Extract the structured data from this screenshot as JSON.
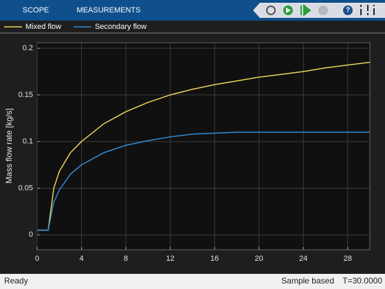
{
  "toolbar": {
    "tabs": [
      "SCOPE",
      "MEASUREMENTS"
    ]
  },
  "status": {
    "left": "Ready",
    "mode": "Sample based",
    "time": "T=30.0000"
  },
  "chart_data": {
    "type": "line",
    "y_label": "Mass flow rate [kg/s]",
    "x": [
      0,
      1,
      1.5,
      2,
      3,
      4,
      6,
      8,
      10,
      12,
      14,
      16,
      18,
      20,
      22,
      24,
      26,
      28,
      30
    ],
    "series": [
      {
        "name": "Mixed flow",
        "color": "#edd55e",
        "values": [
          0.005,
          0.005,
          0.05,
          0.068,
          0.088,
          0.1,
          0.119,
          0.132,
          0.142,
          0.15,
          0.156,
          0.161,
          0.165,
          0.169,
          0.172,
          0.175,
          0.179,
          0.182,
          0.185
        ]
      },
      {
        "name": "Secondary flow",
        "color": "#2f8fdb",
        "values": [
          0.005,
          0.005,
          0.035,
          0.048,
          0.065,
          0.075,
          0.088,
          0.096,
          0.101,
          0.105,
          0.108,
          0.109,
          0.11,
          0.11,
          0.11,
          0.11,
          0.11,
          0.11,
          0.11
        ]
      }
    ],
    "xlim": [
      0,
      30
    ],
    "xticks": [
      0,
      4,
      8,
      12,
      16,
      20,
      24,
      28
    ],
    "ylim": [
      -0.016,
      0.206
    ],
    "yticks": [
      0,
      0.05,
      0.1,
      0.15,
      0.2
    ],
    "grid": true
  }
}
